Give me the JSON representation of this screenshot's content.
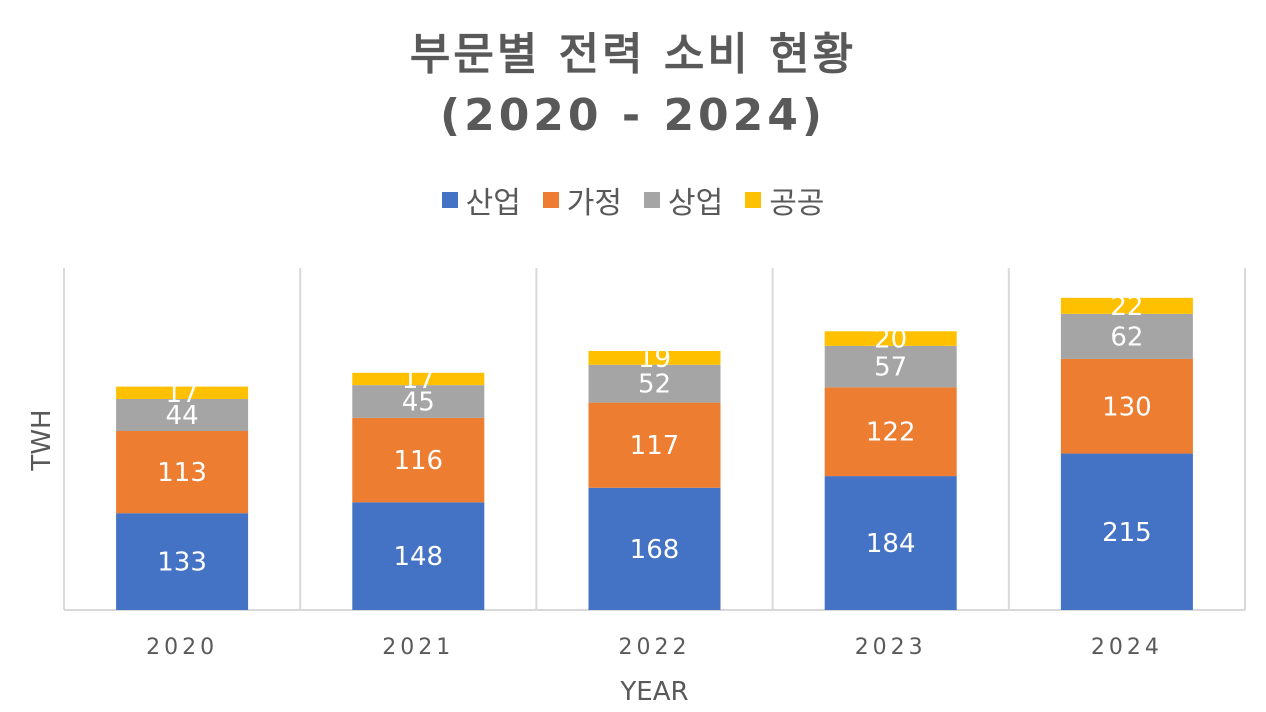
{
  "chart_data": {
    "type": "bar",
    "stacked": true,
    "title": "부문별 전력 소비 현황",
    "subtitle": "(2020 - 2024)",
    "xlabel": "YEAR",
    "ylabel": "TWH",
    "categories": [
      "2020",
      "2021",
      "2022",
      "2023",
      "2024"
    ],
    "series": [
      {
        "name": "산업",
        "color": "#4472C4",
        "values": [
          133,
          148,
          168,
          184,
          215
        ]
      },
      {
        "name": "가정",
        "color": "#ED7D31",
        "values": [
          113,
          116,
          117,
          122,
          130
        ]
      },
      {
        "name": "상업",
        "color": "#A5A5A5",
        "values": [
          44,
          45,
          52,
          57,
          62
        ]
      },
      {
        "name": "공공",
        "color": "#FFC000",
        "values": [
          17,
          17,
          19,
          20,
          22
        ]
      }
    ],
    "ylim": [
      0,
      470
    ],
    "legend_position": "top",
    "grid": "vertical separators"
  }
}
